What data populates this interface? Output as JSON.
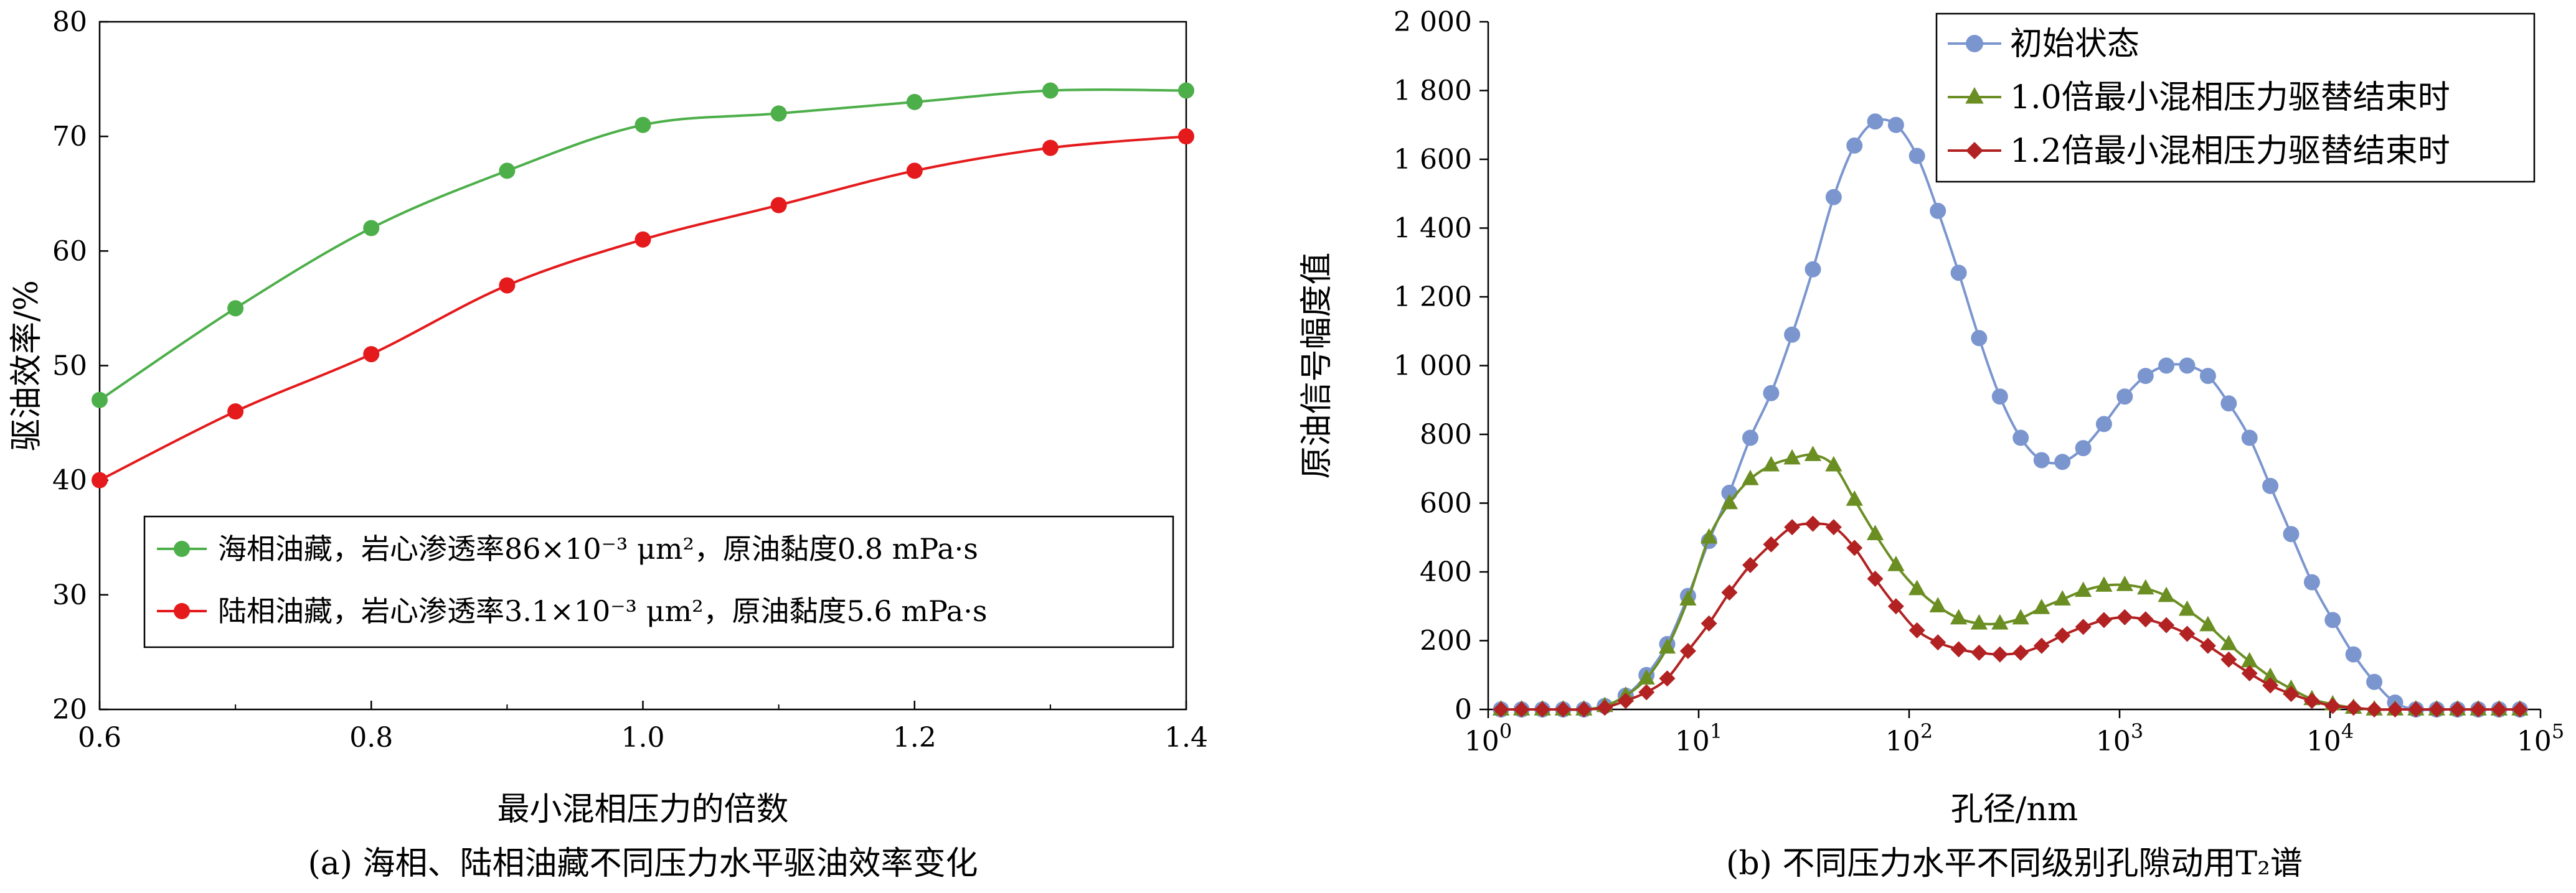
{
  "chart_data": [
    {
      "type": "line",
      "caption": "(a) 海相、陆相油藏不同压力水平驱油效率变化",
      "xlabel": "最小混相压力的倍数",
      "ylabel": "驱油效率/%",
      "xlim": [
        0.6,
        1.4
      ],
      "ylim": [
        20,
        80
      ],
      "x_ticks": [
        "0.6",
        "0.8",
        "1.0",
        "1.2",
        "1.4"
      ],
      "y_ticks": [
        "20",
        "30",
        "40",
        "50",
        "60",
        "70",
        "80"
      ],
      "legend_position": "bottom-right",
      "x": [
        0.6,
        0.7,
        0.8,
        0.9,
        1.0,
        1.1,
        1.2,
        1.3,
        1.4
      ],
      "series": [
        {
          "name": "海相油藏，岩心渗透率86×10⁻³ μm²，原油黏度0.8 mPa·s",
          "color": "#4daf4a",
          "marker": "circle",
          "values": [
            47,
            55,
            62,
            67,
            71,
            72,
            73,
            74,
            74
          ]
        },
        {
          "name": "陆相油藏，岩心渗透率3.1×10⁻³ μm²，原油黏度5.6 mPa·s",
          "color": "#e41a1c",
          "marker": "circle",
          "values": [
            40,
            46,
            51,
            57,
            61,
            64,
            67,
            69,
            70
          ]
        }
      ]
    },
    {
      "type": "line",
      "caption": "(b) 不同压力水平不同级别孔隙动用T₂谱",
      "xlabel": "孔径/nm",
      "ylabel": "原油信号幅度值",
      "x_scale": "log",
      "xlim": [
        1,
        100000
      ],
      "ylim": [
        0,
        2000
      ],
      "x_ticks": [
        {
          "base": "10",
          "exp": "0"
        },
        {
          "base": "10",
          "exp": "1"
        },
        {
          "base": "10",
          "exp": "2"
        },
        {
          "base": "10",
          "exp": "3"
        },
        {
          "base": "10",
          "exp": "4"
        },
        {
          "base": "10",
          "exp": "5"
        }
      ],
      "y_ticks": [
        "0",
        "200",
        "400",
        "600",
        "800",
        "1 000",
        "1 200",
        "1 400",
        "1 600",
        "1 800",
        "2 000"
      ],
      "legend_position": "top-right",
      "x": [
        1.15,
        1.44,
        1.81,
        2.27,
        2.85,
        3.58,
        4.5,
        5.65,
        7.09,
        8.9,
        11.2,
        14.0,
        17.6,
        22.1,
        27.8,
        34.9,
        43.8,
        55.0,
        69.0,
        86.6,
        109,
        137,
        172,
        215,
        270,
        339,
        426,
        535,
        672,
        843,
        1058,
        1329,
        1668,
        2094,
        2629,
        3301,
        4144,
        5203,
        6532,
        8201,
        10296,
        12926,
        16228,
        20374,
        25579,
        32114,
        40318,
        50618,
        63549,
        79784
      ],
      "series": [
        {
          "name": "初始状态",
          "color": "#7b96cf",
          "marker": "circle",
          "values": [
            0,
            0,
            0,
            0,
            0,
            10,
            40,
            100,
            190,
            330,
            490,
            630,
            790,
            920,
            1090,
            1280,
            1490,
            1640,
            1710,
            1700,
            1610,
            1450,
            1270,
            1080,
            910,
            790,
            725,
            720,
            760,
            830,
            910,
            970,
            1000,
            1000,
            970,
            890,
            790,
            650,
            510,
            370,
            260,
            160,
            80,
            20,
            0,
            0,
            0,
            0,
            0,
            0
          ]
        },
        {
          "name": "1.0倍最小混相压力驱替结束时",
          "color": "#6b8e23",
          "marker": "triangle",
          "values": [
            0,
            0,
            0,
            0,
            0,
            10,
            40,
            90,
            180,
            320,
            500,
            600,
            670,
            710,
            730,
            740,
            710,
            610,
            510,
            420,
            350,
            300,
            265,
            250,
            250,
            265,
            295,
            320,
            345,
            360,
            362,
            352,
            330,
            290,
            245,
            190,
            140,
            95,
            60,
            30,
            15,
            5,
            0,
            0,
            0,
            0,
            0,
            0,
            0,
            0
          ]
        },
        {
          "name": "1.2倍最小混相压力驱替结束时",
          "color": "#b22222",
          "marker": "diamond",
          "values": [
            0,
            0,
            0,
            0,
            0,
            5,
            25,
            50,
            90,
            170,
            250,
            340,
            420,
            480,
            530,
            540,
            530,
            470,
            380,
            300,
            230,
            195,
            175,
            165,
            160,
            165,
            185,
            215,
            240,
            260,
            268,
            262,
            245,
            220,
            185,
            145,
            105,
            70,
            45,
            25,
            10,
            5,
            0,
            0,
            0,
            0,
            0,
            0,
            0,
            0
          ]
        }
      ]
    }
  ]
}
